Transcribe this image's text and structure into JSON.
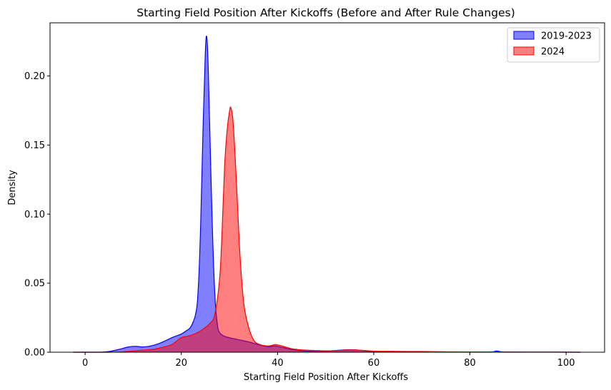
{
  "chart_data": {
    "type": "area",
    "title": "Starting Field Position After Kickoffs (Before and After Rule Changes)",
    "xlabel": "Starting Field Position After Kickoffs",
    "ylabel": "Density",
    "xlim": [
      -7.3,
      108
    ],
    "ylim": [
      0,
      0.2385
    ],
    "xticks": [
      0,
      20,
      40,
      60,
      80,
      100
    ],
    "yticks": [
      0.0,
      0.05,
      0.1,
      0.15,
      0.2
    ],
    "ytick_format": 2,
    "legend_position": "top-right",
    "grid": false,
    "series": [
      {
        "name": "2019-2023",
        "color": "#0000ff",
        "fill_opacity": 0.5,
        "points": [
          [
            -2.5,
            0
          ],
          [
            3,
            0
          ],
          [
            5,
            0.0005
          ],
          [
            7,
            0.002
          ],
          [
            9,
            0.0038
          ],
          [
            10.5,
            0.0043
          ],
          [
            12,
            0.0038
          ],
          [
            14,
            0.0048
          ],
          [
            16,
            0.0072
          ],
          [
            18,
            0.0105
          ],
          [
            20,
            0.0132
          ],
          [
            21,
            0.0155
          ],
          [
            22,
            0.0185
          ],
          [
            23,
            0.028
          ],
          [
            23.5,
            0.045
          ],
          [
            24,
            0.09
          ],
          [
            24.5,
            0.16
          ],
          [
            25,
            0.218
          ],
          [
            25.3,
            0.228
          ],
          [
            25.6,
            0.205
          ],
          [
            26,
            0.15
          ],
          [
            26.5,
            0.085
          ],
          [
            27,
            0.04
          ],
          [
            27.5,
            0.02
          ],
          [
            28,
            0.014
          ],
          [
            29,
            0.0115
          ],
          [
            30,
            0.0105
          ],
          [
            32,
            0.009
          ],
          [
            34,
            0.0075
          ],
          [
            36,
            0.0055
          ],
          [
            38,
            0.004
          ],
          [
            39.5,
            0.0045
          ],
          [
            41,
            0.0035
          ],
          [
            43,
            0.002
          ],
          [
            46,
            0.0008
          ],
          [
            50,
            0.0008
          ],
          [
            53,
            0.0015
          ],
          [
            55,
            0.0018
          ],
          [
            57,
            0.0015
          ],
          [
            60,
            0.0006
          ],
          [
            65,
            0.0003
          ],
          [
            75,
            0.0002
          ],
          [
            84,
            0.0002
          ],
          [
            85.5,
            0.0009
          ],
          [
            87,
            0.0002
          ],
          [
            92,
            0.0001
          ],
          [
            103,
            0
          ]
        ]
      },
      {
        "name": "2024",
        "color": "#ff0000",
        "fill_opacity": 0.5,
        "points": [
          [
            -2.5,
            0
          ],
          [
            5,
            0
          ],
          [
            8,
            0.0003
          ],
          [
            11,
            0.0012
          ],
          [
            14,
            0.002
          ],
          [
            16,
            0.0035
          ],
          [
            18,
            0.0055
          ],
          [
            20,
            0.0105
          ],
          [
            22,
            0.0122
          ],
          [
            24,
            0.0155
          ],
          [
            26,
            0.021
          ],
          [
            27,
            0.028
          ],
          [
            28,
            0.055
          ],
          [
            28.5,
            0.09
          ],
          [
            29,
            0.135
          ],
          [
            29.5,
            0.16
          ],
          [
            30,
            0.174
          ],
          [
            30.3,
            0.177
          ],
          [
            30.8,
            0.165
          ],
          [
            31.5,
            0.12
          ],
          [
            32.2,
            0.07
          ],
          [
            33,
            0.035
          ],
          [
            34,
            0.018
          ],
          [
            35,
            0.009
          ],
          [
            36,
            0.006
          ],
          [
            38,
            0.0045
          ],
          [
            39.5,
            0.0055
          ],
          [
            41,
            0.0045
          ],
          [
            43,
            0.0025
          ],
          [
            46,
            0.0015
          ],
          [
            50,
            0.001
          ],
          [
            53,
            0.0013
          ],
          [
            55,
            0.0017
          ],
          [
            57,
            0.0015
          ],
          [
            60,
            0.0008
          ],
          [
            65,
            0.0006
          ],
          [
            70,
            0.0005
          ],
          [
            75,
            0.0003
          ],
          [
            80,
            0.0002
          ],
          [
            90,
            0.0001
          ],
          [
            103,
            0
          ]
        ]
      }
    ]
  }
}
